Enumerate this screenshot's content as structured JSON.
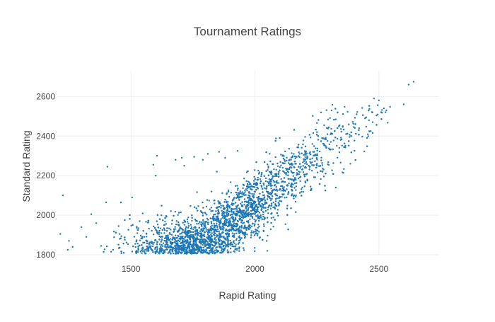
{
  "chart_data": {
    "type": "scatter",
    "title": "Tournament Ratings",
    "xlabel": "Rapid Rating",
    "ylabel": "Standard Rating",
    "xlim": [
      1200,
      2740
    ],
    "ylim": [
      1800,
      2730
    ],
    "x_ticks": [
      1500,
      2000,
      2500
    ],
    "y_ticks": [
      1800,
      2000,
      2200,
      2400,
      2600
    ],
    "grid": true,
    "marker_color": "#1f77b4",
    "series": [
      {
        "points": [
          [
            1225,
            2100
          ],
          [
            1215,
            1905
          ],
          [
            1245,
            1825
          ],
          [
            1265,
            1840
          ],
          [
            1300,
            1940
          ],
          [
            1340,
            2005
          ],
          [
            1360,
            1960
          ],
          [
            1380,
            1845
          ],
          [
            1400,
            2065
          ],
          [
            1405,
            2245
          ],
          [
            1420,
            1815
          ],
          [
            1450,
            1945
          ],
          [
            1475,
            1975
          ],
          [
            1505,
            2090
          ],
          [
            1590,
            2255
          ],
          [
            1605,
            2300
          ],
          [
            1600,
            2200
          ],
          [
            1680,
            2280
          ],
          [
            1705,
            2290
          ],
          [
            1715,
            2250
          ],
          [
            1755,
            2295
          ],
          [
            1790,
            2280
          ],
          [
            1810,
            2310
          ],
          [
            1855,
            2320
          ],
          [
            1880,
            2290
          ],
          [
            1930,
            2325
          ],
          [
            2100,
            2390
          ],
          [
            2250,
            2420
          ],
          [
            2385,
            2260
          ],
          [
            2410,
            2510
          ],
          [
            2480,
            2590
          ],
          [
            2500,
            2580
          ],
          [
            2520,
            2540
          ],
          [
            2530,
            2530
          ],
          [
            2600,
            2560
          ],
          [
            2620,
            2660
          ],
          [
            2640,
            2675
          ],
          [
            2460,
            2480
          ],
          [
            2475,
            2470
          ],
          [
            2420,
            2440
          ],
          [
            1160,
            1805
          ],
          [
            1250,
            1870
          ],
          [
            1320,
            1890
          ],
          [
            1390,
            1815
          ],
          [
            2050,
            1820
          ]
        ]
      }
    ],
    "cluster_shape": {
      "note_points_generated_along_trend": true
    }
  }
}
